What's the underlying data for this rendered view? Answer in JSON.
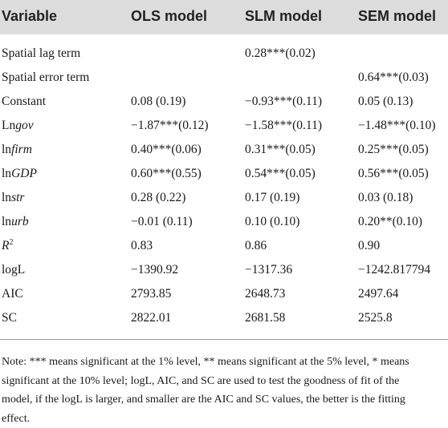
{
  "table": {
    "headers": [
      "Variable",
      "OLS model",
      "SLM model",
      "SEM model"
    ],
    "rows": [
      {
        "variable": "Spatial lag term",
        "ols": "",
        "slm": "0.28***(0.02)",
        "sem": ""
      },
      {
        "variable": "Spatial error term",
        "ols": "",
        "slm": "",
        "sem": "0.64***(0.03)"
      },
      {
        "variable": "Constant",
        "ols": "0.08 (0.19)",
        "slm": "−0.93***(0.11)",
        "sem": "0.05 (0.13)"
      },
      {
        "variable_prefix": "Ln",
        "variable_italic": "gov",
        "ols": "−1.87***(0.12)",
        "slm": "−1.58***(0.11)",
        "sem": "−1.48***(0.10)"
      },
      {
        "variable_prefix": "ln",
        "variable_italic": "firm",
        "ols": "0.40***(0.06)",
        "slm": "0.31***(0.05)",
        "sem": "0.25***(0.05)"
      },
      {
        "variable_prefix": "ln",
        "variable_italic": "GDP",
        "ols": "0.60***(0.55)",
        "slm": "0.54***(0.05)",
        "sem": "0.56***(0.05)"
      },
      {
        "variable_prefix": "ln",
        "variable_italic": "str",
        "ols": "0.28 (0.22)",
        "slm": "0.17 (0.19)",
        "sem": "0.03 (0.18)"
      },
      {
        "variable_prefix": "ln",
        "variable_italic": "urb",
        "ols": "−0.01 (0.11)",
        "slm": "0.10 (0.10)",
        "sem": "0.20**(0.10)"
      },
      {
        "variable_italic": "R",
        "variable_sup": "2",
        "ols": "0.83",
        "slm": "0.86",
        "sem": "0.90"
      },
      {
        "variable": "logL",
        "ols": "−1390.92",
        "slm": "−1317.36",
        "sem": "−1242.817794"
      },
      {
        "variable": "AIC",
        "ols": "2793.85",
        "slm": "2648.73",
        "sem": "2497.64"
      },
      {
        "variable": "SC",
        "ols": "2822.01",
        "slm": "2681.58",
        "sem": "2525.8"
      }
    ]
  },
  "note": {
    "lines": [
      "Note: *** means significant at the 1% level, ** means significant at the 5% level, * means",
      "significant at the 10% level; logL, AIC, and SC are used to test the goodness of fit of the",
      "model, if the logL is larger, and smaller are the AIC and SC values, the better is the fitting",
      "effect."
    ]
  }
}
